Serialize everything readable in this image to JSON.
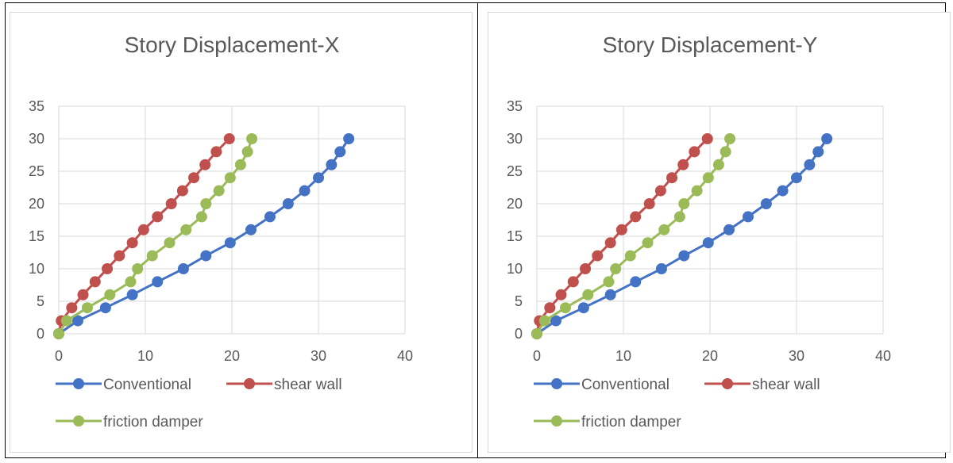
{
  "chart_data": [
    {
      "type": "line",
      "title": "Story Displacement-X",
      "xlabel": "",
      "ylabel": "",
      "xlim": [
        0,
        40
      ],
      "ylim": [
        0,
        35
      ],
      "xticks": [
        "0",
        "10",
        "20",
        "30",
        "40"
      ],
      "yticks": [
        "0",
        "5",
        "10",
        "15",
        "20",
        "25",
        "30",
        "35"
      ],
      "grid": true,
      "legend": "bottom",
      "series": [
        {
          "name": "Conventional",
          "color": "#4472C4",
          "x": [
            0,
            2.2,
            5.4,
            8.5,
            11.4,
            14.4,
            17.0,
            19.8,
            22.2,
            24.4,
            26.5,
            28.4,
            30.0,
            31.5,
            32.5,
            33.5
          ],
          "y": [
            0,
            2,
            4,
            6,
            8,
            10,
            12,
            14,
            16,
            18,
            20,
            22,
            24,
            26,
            28,
            30
          ]
        },
        {
          "name": "shear wall",
          "color": "#C0504D",
          "x": [
            0,
            0.3,
            1.5,
            2.8,
            4.2,
            5.6,
            7.0,
            8.5,
            9.8,
            11.4,
            13.0,
            14.3,
            15.6,
            16.9,
            18.2,
            19.7
          ],
          "y": [
            0,
            2,
            4,
            6,
            8,
            10,
            12,
            14,
            16,
            18,
            20,
            22,
            24,
            26,
            28,
            30
          ]
        },
        {
          "name": "friction damper",
          "color": "#9BBB59",
          "x": [
            0,
            0.9,
            3.3,
            5.9,
            8.3,
            9.1,
            10.8,
            12.8,
            14.7,
            16.5,
            17.0,
            18.5,
            19.8,
            21.0,
            21.8,
            22.3
          ],
          "y": [
            0,
            2,
            4,
            6,
            8,
            10,
            12,
            14,
            16,
            18,
            20,
            22,
            24,
            26,
            28,
            30
          ]
        }
      ]
    },
    {
      "type": "line",
      "title": "Story Displacement-Y",
      "xlabel": "",
      "ylabel": "",
      "xlim": [
        0,
        40
      ],
      "ylim": [
        0,
        35
      ],
      "xticks": [
        "0",
        "10",
        "20",
        "30",
        "40"
      ],
      "yticks": [
        "0",
        "5",
        "10",
        "15",
        "20",
        "25",
        "30",
        "35"
      ],
      "grid": true,
      "legend": "bottom",
      "series": [
        {
          "name": "Conventional",
          "color": "#4472C4",
          "x": [
            0,
            2.2,
            5.4,
            8.5,
            11.4,
            14.4,
            17.0,
            19.8,
            22.2,
            24.4,
            26.5,
            28.4,
            30.0,
            31.5,
            32.5,
            33.5
          ],
          "y": [
            0,
            2,
            4,
            6,
            8,
            10,
            12,
            14,
            16,
            18,
            20,
            22,
            24,
            26,
            28,
            30
          ]
        },
        {
          "name": "shear wall",
          "color": "#C0504D",
          "x": [
            0,
            0.3,
            1.5,
            2.8,
            4.2,
            5.6,
            7.0,
            8.5,
            9.8,
            11.4,
            13.0,
            14.3,
            15.6,
            16.9,
            18.2,
            19.7
          ],
          "y": [
            0,
            2,
            4,
            6,
            8,
            10,
            12,
            14,
            16,
            18,
            20,
            22,
            24,
            26,
            28,
            30
          ]
        },
        {
          "name": "friction damper",
          "color": "#9BBB59",
          "x": [
            0,
            0.9,
            3.3,
            5.9,
            8.3,
            9.1,
            10.8,
            12.8,
            14.7,
            16.5,
            17.0,
            18.5,
            19.8,
            21.0,
            21.8,
            22.3
          ],
          "y": [
            0,
            2,
            4,
            6,
            8,
            10,
            12,
            14,
            16,
            18,
            20,
            22,
            24,
            26,
            28,
            30
          ]
        }
      ]
    }
  ]
}
